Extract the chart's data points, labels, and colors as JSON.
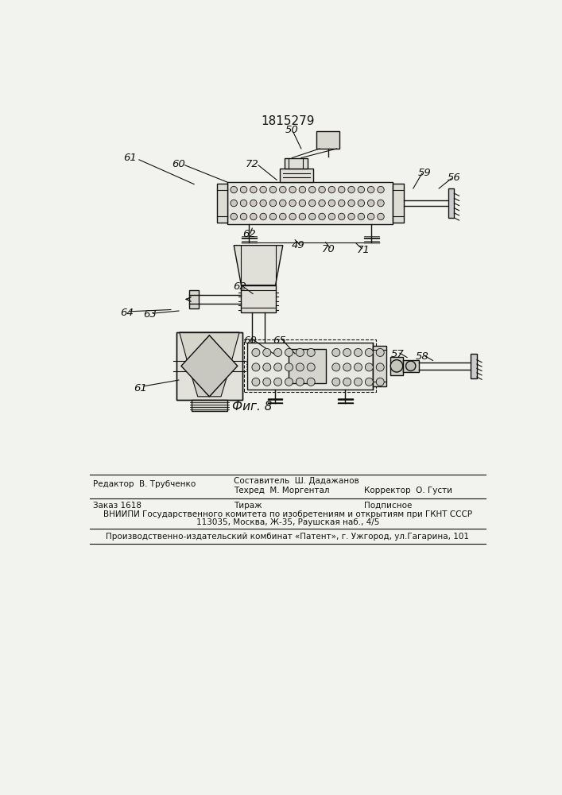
{
  "patent_number": "1815279",
  "fig_label": "Фиг. 8",
  "bg_color": "#f2f2ee",
  "line_color": "#111111",
  "footer_line1a": "Редактор  В. Трубченко",
  "footer_line1b": "Составитель  Ш. Дадажанов",
  "footer_line2b": "Техред  М. Моргентал",
  "footer_line2c": "Корректор  О. Густи",
  "footer_zakaz": "Заказ 1618",
  "footer_tirazh": "Тираж",
  "footer_podpisnoe": "Подписное",
  "footer_vnipi": "ВНИИПИ Государственного комитета по изобретениям и открытиям при ГКНТ СССР",
  "footer_addr": "113035, Москва, Ж-35, Раушская наб., 4/5",
  "footer_patent": "Производственно-издательский комбинат «Патент», г. Ужгород, ул.Гагарина, 101"
}
